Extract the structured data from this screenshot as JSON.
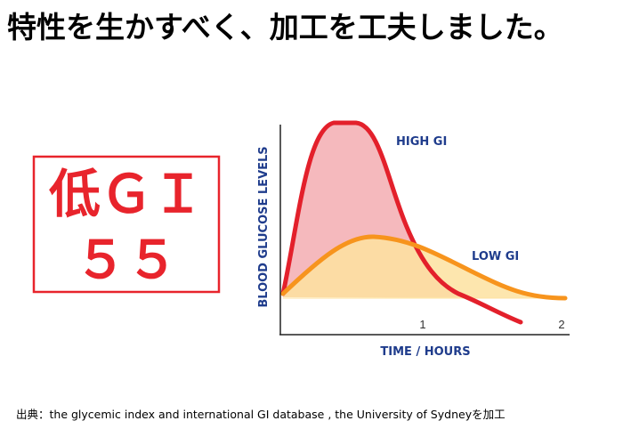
{
  "header": {
    "title": "特性を生かすべく、加工を工夫しました。"
  },
  "badge": {
    "lines": [
      "低ＧＩ",
      "５５"
    ]
  },
  "graph": {
    "y_axis_label": "BLOOD GLUCOSE LEVELS",
    "x_axis_label": "TIME / HOURS",
    "x_ticks": [
      "1",
      "2"
    ],
    "curves": [
      {
        "label": "HIGH GI"
      },
      {
        "label": "LOW GI"
      }
    ]
  },
  "footer": {
    "source": "出典：the glycemic index and international GI database , the University of Sydneyを加工"
  }
}
